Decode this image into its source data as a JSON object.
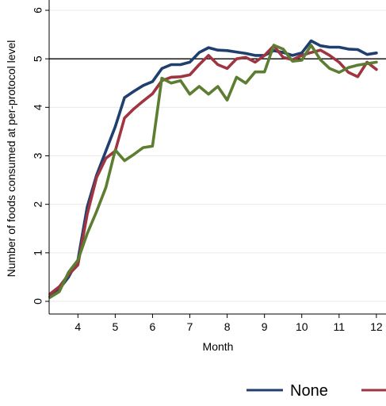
{
  "chart_data": {
    "type": "line",
    "title": "",
    "xlabel": "Month",
    "ylabel": "Number of foods consumed at per-protocol level",
    "xlim": [
      3.1,
      12.2
    ],
    "ylim": [
      -0.25,
      6.2
    ],
    "xticks": [
      4,
      5,
      6,
      7,
      8,
      9,
      10,
      11,
      12
    ],
    "yticks": [
      0,
      1,
      2,
      3,
      4,
      5,
      6
    ],
    "xtick_labels": [
      "4",
      "5",
      "6",
      "7",
      "8",
      "9",
      "10",
      "11",
      "12"
    ],
    "ytick_labels": [
      "0",
      "1",
      "2",
      "3",
      "4",
      "5",
      "6"
    ],
    "grid": "y",
    "reference_line": 5,
    "legend": {
      "placement": "bottom",
      "entries": [
        {
          "label": "None",
          "color": "#1f3f6e"
        },
        {
          "label": "",
          "color": "#9e3540"
        }
      ]
    },
    "x": [
      3.25,
      3.5,
      3.75,
      4.0,
      4.25,
      4.5,
      4.75,
      5.0,
      5.25,
      5.5,
      5.75,
      6.0,
      6.25,
      6.5,
      6.75,
      7.0,
      7.25,
      7.5,
      7.75,
      8.0,
      8.25,
      8.5,
      8.75,
      9.0,
      9.25,
      9.5,
      9.75,
      10.0,
      10.25,
      10.5,
      10.75,
      11.0,
      11.25,
      11.5,
      11.75,
      12.0
    ],
    "series": [
      {
        "name": "None",
        "color": "#1f3f6e",
        "values": [
          0.1,
          0.25,
          0.5,
          0.85,
          1.95,
          2.6,
          3.1,
          3.6,
          4.2,
          4.33,
          4.45,
          4.53,
          4.8,
          4.88,
          4.88,
          4.93,
          5.13,
          5.23,
          5.18,
          5.17,
          5.14,
          5.11,
          5.07,
          5.07,
          5.17,
          5.13,
          5.07,
          5.12,
          5.37,
          5.27,
          5.24,
          5.24,
          5.2,
          5.19,
          5.09,
          5.12
        ]
      },
      {
        "name": "",
        "color": "#9e3540",
        "values": [
          0.15,
          0.3,
          0.55,
          0.75,
          1.8,
          2.55,
          2.95,
          3.1,
          3.78,
          3.97,
          4.13,
          4.28,
          4.55,
          4.62,
          4.63,
          4.67,
          4.88,
          5.07,
          4.88,
          4.8,
          5.0,
          5.03,
          4.93,
          5.07,
          5.27,
          5.03,
          4.98,
          5.07,
          5.13,
          5.18,
          5.07,
          4.93,
          4.72,
          4.63,
          4.93,
          4.78
        ]
      },
      {
        "name": "",
        "color": "#5c7d32",
        "values": [
          0.08,
          0.2,
          0.6,
          0.85,
          1.4,
          1.85,
          2.35,
          3.12,
          2.9,
          3.03,
          3.17,
          3.2,
          4.6,
          4.5,
          4.55,
          4.27,
          4.43,
          4.27,
          4.43,
          4.15,
          4.62,
          4.5,
          4.73,
          4.73,
          5.28,
          5.2,
          4.95,
          4.97,
          5.28,
          4.98,
          4.8,
          4.72,
          4.82,
          4.87,
          4.9,
          4.93
        ]
      }
    ]
  }
}
